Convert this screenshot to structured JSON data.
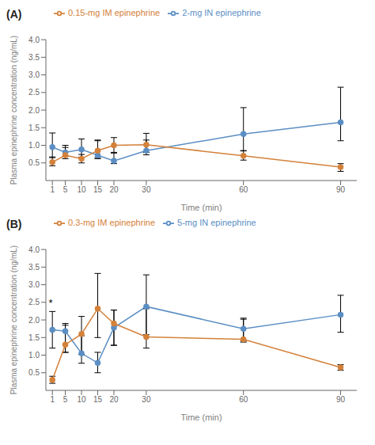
{
  "chart_data": [
    {
      "type": "line",
      "title": "(A)",
      "x": [
        1,
        5,
        10,
        15,
        20,
        30,
        60,
        90
      ],
      "series": [
        {
          "name": "2-mg IN epinephrine",
          "color": "#5b8ec4",
          "marker": "circle",
          "values": [
            0.95,
            0.8,
            0.88,
            0.72,
            0.56,
            0.85,
            1.32,
            1.65
          ],
          "err_low": [
            0.3,
            0.12,
            0.22,
            0.1,
            0.08,
            0.12,
            0.48,
            0.52
          ],
          "err_high": [
            0.4,
            0.2,
            0.3,
            0.43,
            0.22,
            0.3,
            0.75,
            1.0
          ]
        },
        {
          "name": "0.15-mg IM epinephrine",
          "color": "#d4813a",
          "marker": "circle",
          "values": [
            0.52,
            0.72,
            0.62,
            0.85,
            1.0,
            1.02,
            0.7,
            0.38
          ],
          "err_low": [
            0.1,
            0.1,
            0.12,
            0.2,
            0.2,
            0.22,
            0.12,
            0.12
          ],
          "err_high": [
            0.15,
            0.22,
            0.12,
            0.28,
            0.22,
            0.32,
            0.15,
            0.1
          ]
        }
      ],
      "xlim": [
        -1,
        95
      ],
      "xticks": [
        1,
        5,
        10,
        15,
        20,
        30,
        60,
        90
      ],
      "ylim": [
        0,
        4.0
      ],
      "yticks": [
        0.5,
        {
          "value": 1,
          "label": "1.0"
        },
        1.5,
        {
          "value": 2,
          "label": "2.0"
        },
        2.5,
        {
          "value": 3,
          "label": "3.0"
        },
        3.5,
        {
          "value": 4,
          "label": "4.0"
        }
      ],
      "y_label": "Plasma epinephrine concentration (ng/mL)",
      "x_label": "Time (min)",
      "legend": "upper left",
      "grid": false
    },
    {
      "type": "line",
      "title": "(B)",
      "x": [
        1,
        5,
        10,
        15,
        20,
        30,
        60,
        90
      ],
      "series": [
        {
          "name": "5-mg IN epinephrine",
          "color": "#5b8ec4",
          "marker": "circle",
          "values": [
            1.72,
            1.68,
            1.05,
            0.78,
            1.78,
            2.38,
            1.75,
            2.15
          ],
          "err_low": [
            0.52,
            0.6,
            0.28,
            0.28,
            0.5,
            0.8,
            0.35,
            0.5
          ],
          "err_high": [
            0.52,
            0.22,
            0.5,
            0.3,
            0.5,
            0.9,
            0.27,
            0.55
          ]
        },
        {
          "name": "0.3-mg IM epinephrine",
          "color": "#d4813a",
          "marker": "circle",
          "values": [
            0.3,
            1.3,
            1.6,
            2.32,
            1.9,
            1.52,
            1.45,
            0.65
          ],
          "err_low": [
            0.1,
            0.22,
            0.58,
            0.82,
            0.62,
            0.32,
            0.08,
            0.08
          ],
          "err_high": [
            0.1,
            0.55,
            0.5,
            1.0,
            0.38,
            0.8,
            0.6,
            0.08
          ]
        }
      ],
      "xlim": [
        -1,
        95
      ],
      "xticks": [
        1,
        5,
        10,
        15,
        20,
        30,
        60,
        90
      ],
      "ylim": [
        0,
        4.0
      ],
      "yticks": [
        0.5,
        {
          "value": 1,
          "label": "1.0"
        },
        1.5,
        {
          "value": 2,
          "label": "2.0"
        },
        2.5,
        {
          "value": 3,
          "label": "3.0"
        },
        3.5,
        {
          "value": 4,
          "label": "4.0"
        }
      ],
      "y_label": "Plasma epinephrine concentration (ng/mL)",
      "x_label": "Time (min)",
      "legend": "upper left",
      "grid": false,
      "annotations": [
        {
          "text": "*",
          "x": 0.5,
          "y": 2.48
        }
      ]
    }
  ]
}
